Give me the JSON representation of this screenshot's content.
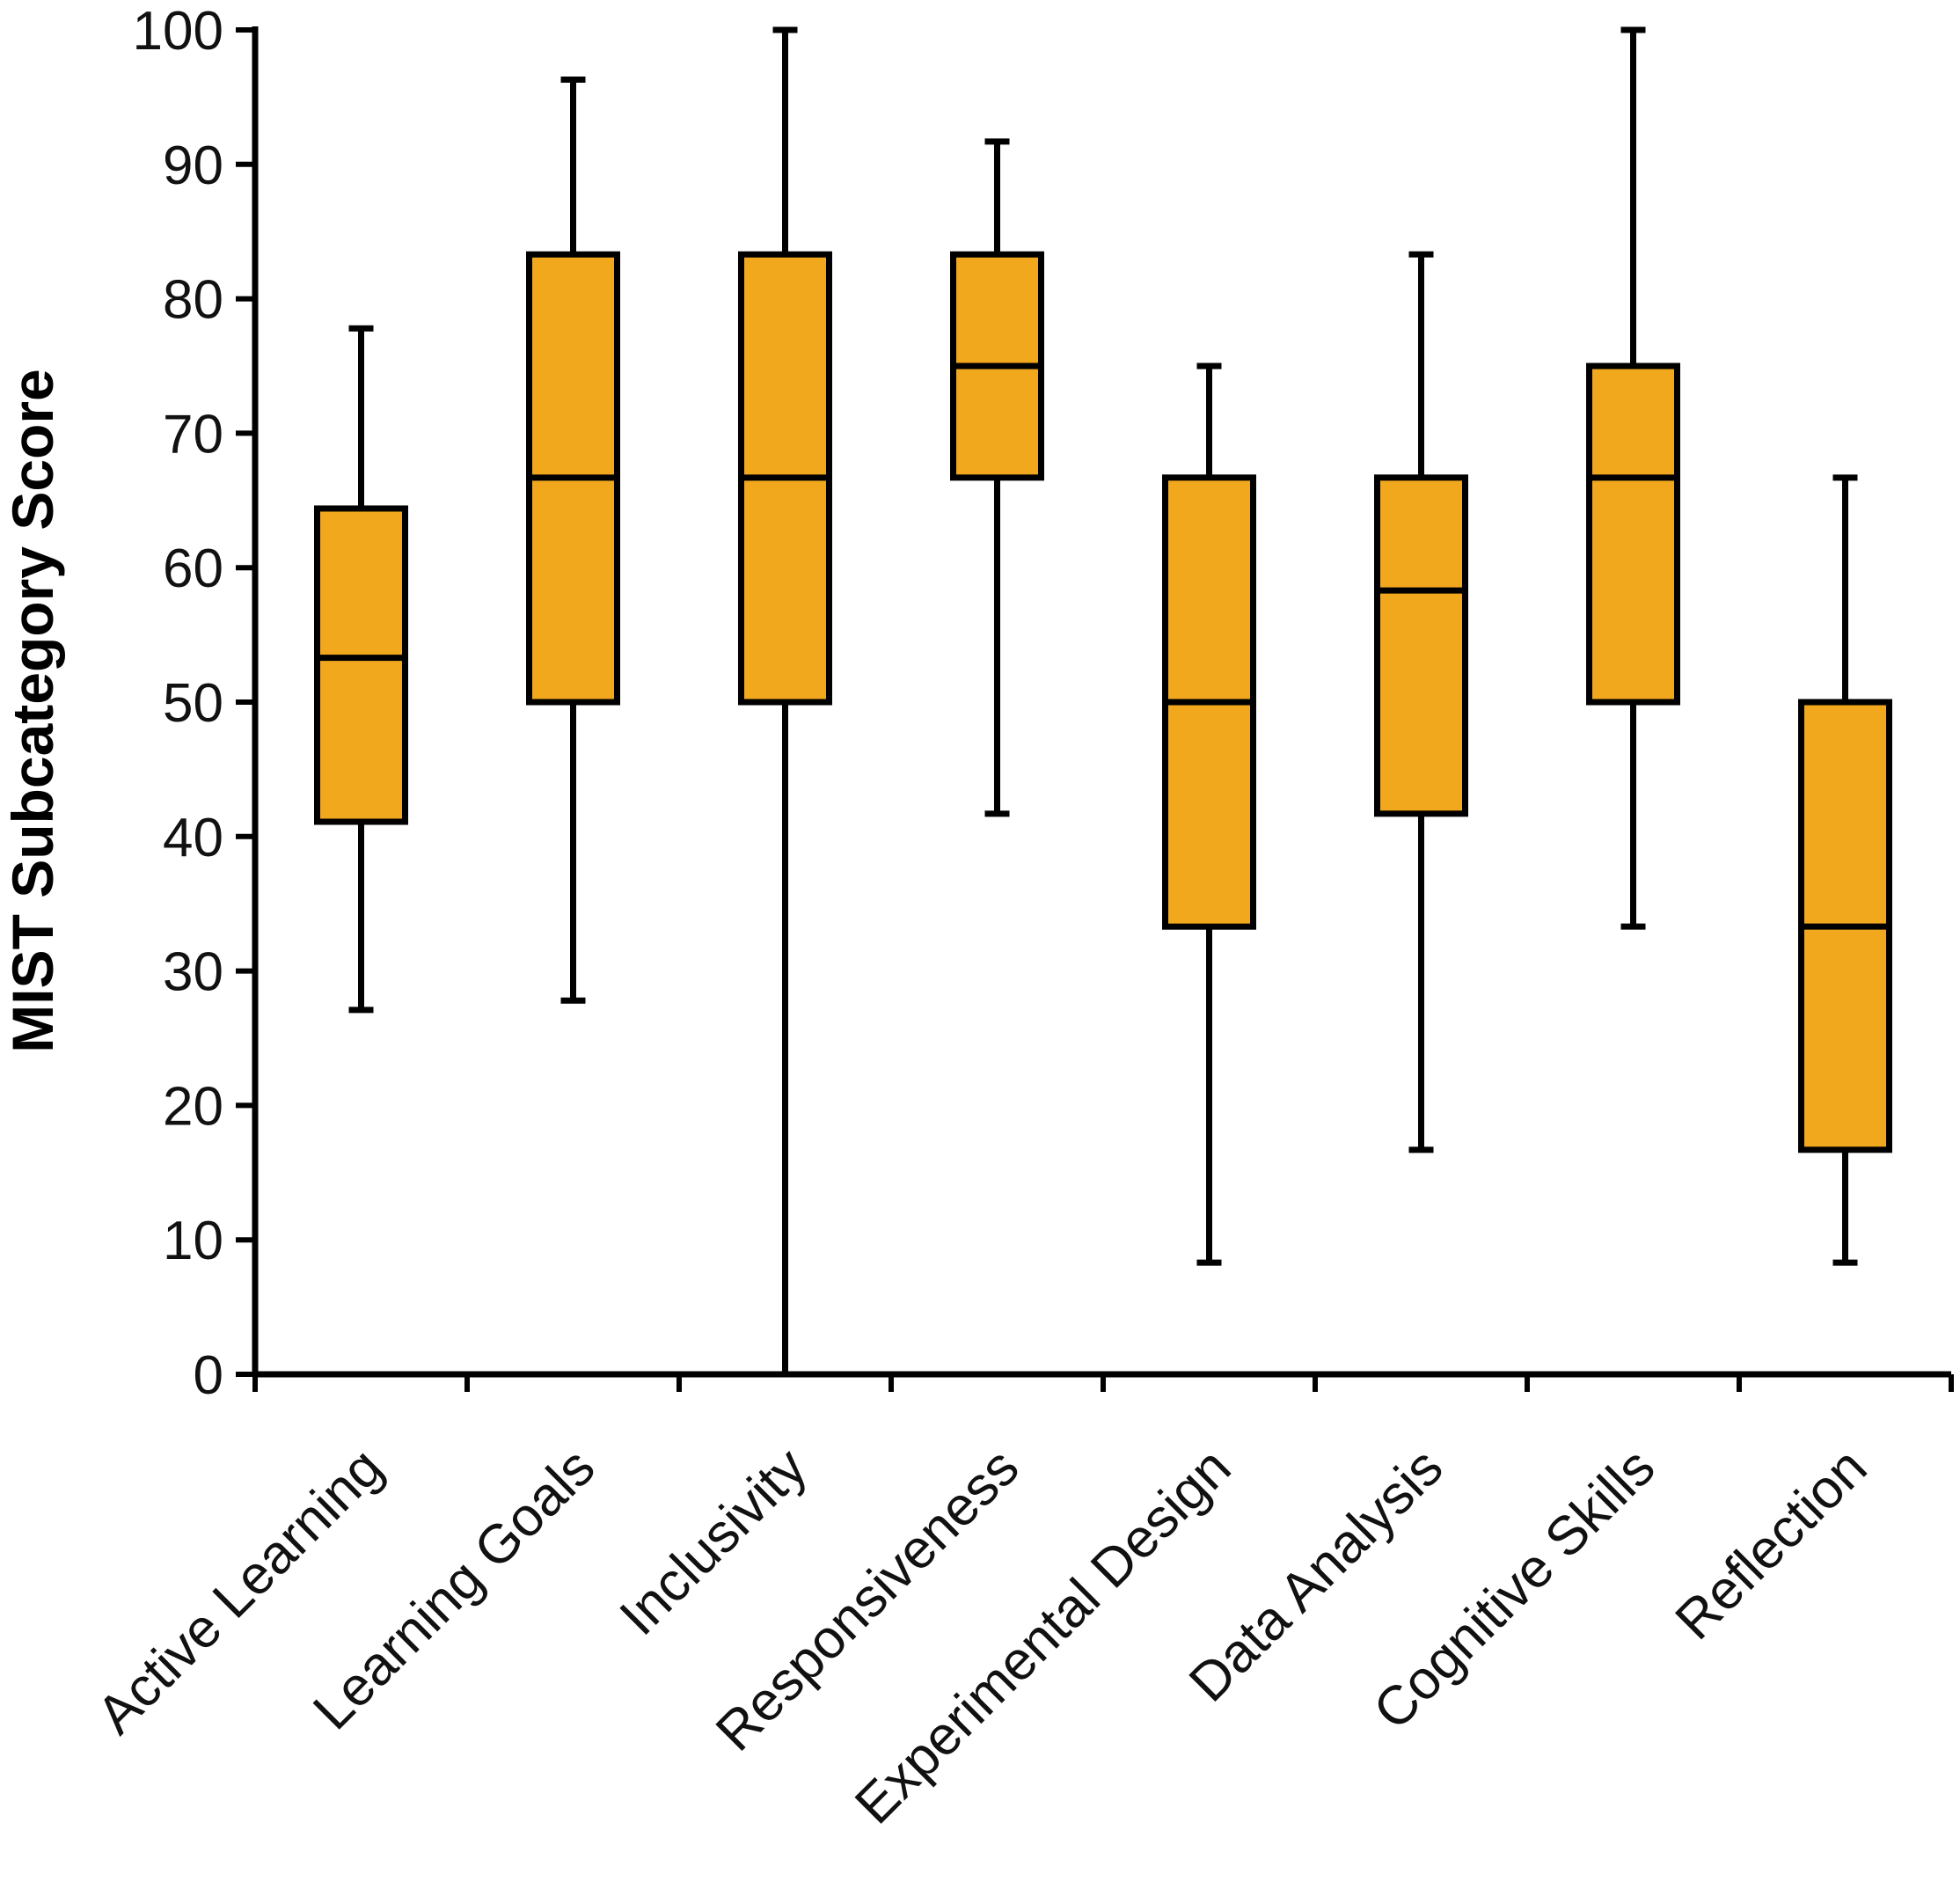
{
  "chart_data": {
    "type": "boxplot",
    "title": "",
    "xlabel": "",
    "ylabel": "MIST Subcategory Score",
    "ylim": [
      0,
      100
    ],
    "yticks": [
      0,
      10,
      20,
      30,
      40,
      50,
      60,
      70,
      80,
      90,
      100
    ],
    "ytick_labels": [
      "0",
      "10",
      "20",
      "30",
      "40",
      "50",
      "60",
      "70",
      "80",
      "90",
      "100"
    ],
    "grid": false,
    "legend": "none",
    "box_color": "#F2A81D",
    "line_color": "#000000",
    "categories": [
      "Active Learning",
      "Learning Goals",
      "Inclusivity",
      "Responsiveness",
      "Experimental Design",
      "Data Analysis",
      "Cognitive Skills",
      "Reflection"
    ],
    "boxes": [
      {
        "category": "Active Learning",
        "min": 27.1,
        "q1": 41.1,
        "median": 53.3,
        "q3": 64.4,
        "max": 77.8
      },
      {
        "category": "Learning Goals",
        "min": 27.8,
        "q1": 50.0,
        "median": 66.7,
        "q3": 83.3,
        "max": 96.3
      },
      {
        "category": "Inclusivity",
        "min": 0.0,
        "q1": 50.0,
        "median": 66.7,
        "q3": 83.3,
        "max": 100.0
      },
      {
        "category": "Responsiveness",
        "min": 41.7,
        "q1": 66.7,
        "median": 75.0,
        "q3": 83.3,
        "max": 91.7
      },
      {
        "category": "Experimental Design",
        "min": 8.3,
        "q1": 33.3,
        "median": 50.0,
        "q3": 66.7,
        "max": 75.0
      },
      {
        "category": "Data Analysis",
        "min": 16.7,
        "q1": 41.7,
        "median": 58.3,
        "q3": 66.7,
        "max": 83.3
      },
      {
        "category": "Cognitive Skills",
        "min": 33.3,
        "q1": 50.0,
        "median": 66.7,
        "q3": 75.0,
        "max": 100.0
      },
      {
        "category": "Reflection",
        "min": 8.3,
        "q1": 16.7,
        "median": 33.3,
        "q3": 50.0,
        "max": 66.7
      }
    ]
  }
}
